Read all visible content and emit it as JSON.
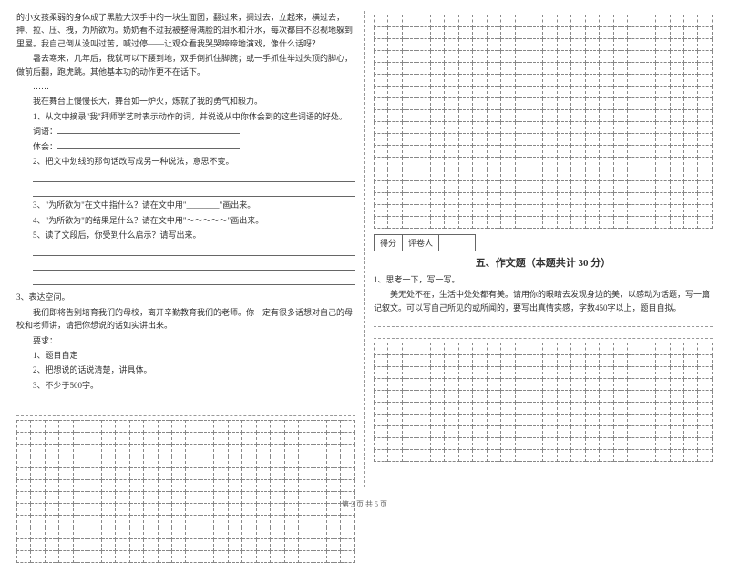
{
  "left": {
    "passage": [
      "的小女孩柔弱的身体成了黑脸大汉手中的一块生面团，翻过来，㨄过去，立起来，横过去，抻、拉、压、拽，为所欲为。奶奶看不过我被整得满脸的泪水和汗水，每次都目不忍视地躲到里屋。我自己倒从没叫过苦，喊过停——让观众看我哭哭啼啼地演戏，像什么话呀？",
      "暑去寒来，几年后，我就可以下腰到地，双手倒抓住脚腕；或一手抓住举过头顶的脚心，做前后翻，跑虎跳。其他基本功的动作更不在话下。",
      "……",
      "我在舞台上慢慢长大，舞台如一炉火，炼就了我的勇气和毅力。"
    ],
    "questions": {
      "q1_text": "1、从文中摘录\"我\"拜师学艺时表示动作的词，并说说从中你体会到的这些词语的好处。",
      "q1_labels": {
        "words": "词语：",
        "feel": "体会："
      },
      "q2_text": "2、把文中划线的那句话改写成另一种说法，意思不变。",
      "q3_text": "3、\"为所欲为\"在文中指什么？请在文中用\"________\"画出来。",
      "q4_text": "4、\"为所欲为\"的结果是什么？请在文中用\"～～～～～\"画出来。",
      "q5_text": "5、读了文段后，你受到什么启示？请写出来。"
    },
    "task3": {
      "heading": "3、表达空间。",
      "intro": "我们即将告别培育我们的母校，离开辛勤教育我们的老师。你一定有很多话想对自己的母校和老师讲，请把你想说的话如实讲出来。",
      "req_label": "要求：",
      "reqs": [
        "1、题目自定",
        "2、把想说的话说清楚，讲具体。",
        "3、不少于500字。"
      ]
    }
  },
  "right": {
    "score_labels": {
      "score": "得分",
      "grader": "评卷人"
    },
    "section_title": "五、作文题（本题共计 30 分）",
    "essay": {
      "heading": "1、思考一下，写一写。",
      "prompt": "美无处不在，生活中处处都有美。请用你的眼睛去发现身边的美，以感动为话题，写一篇记叙文。可以写自己所见的或所闻的，要写出真情实感，字数450字以上，题目自拟。"
    }
  },
  "grid": {
    "cols": 24,
    "left_rows_block": 12,
    "right_top_rows": 18,
    "right_bottom_rows": 10
  },
  "footer": "第 3 页  共 5 页",
  "colors": {
    "text": "#333333",
    "border": "#888888"
  }
}
